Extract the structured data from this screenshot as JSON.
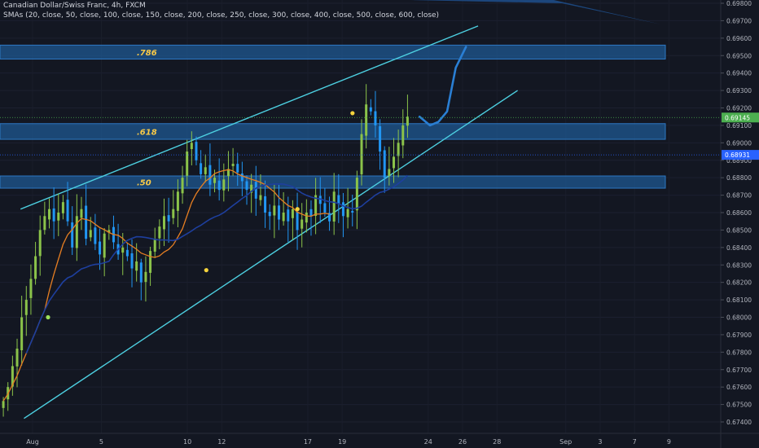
{
  "header": {
    "title": "Canadian Dollar/Swiss Franc, 4h, FXCM",
    "indicator": "SMAs (20, close, 50, close, 100, close, 150, close, 200, close, 250, close, 300, close, 400, close, 500, close, 600, close)"
  },
  "colors": {
    "background": "#131722",
    "bull": "#8bc34a",
    "bear": "#2196f3",
    "channel": "#4dd0e1",
    "fib_zone": "#1e5a96",
    "fib_label": "#f7c948",
    "sma_fast": "#e67e22",
    "sma_slow": "#1e3f9e",
    "projection": "#2a7fd4",
    "marker": "#f5d33c",
    "marker_green": "#9be05a",
    "price_badge_green": "#4caf50",
    "price_badge_blue": "#2962ff"
  },
  "chart_data": {
    "type": "candlestick",
    "symbol": "CADCHF",
    "timeframe": "4h",
    "source": "FXCM",
    "y_axis": {
      "range": [
        0.6738,
        0.6982
      ],
      "ticks": [
        "0.69800",
        "0.69700",
        "0.69600",
        "0.69500",
        "0.69400",
        "0.69300",
        "0.69200",
        "0.69100",
        "0.69000",
        "0.68900",
        "0.68800",
        "0.68700",
        "0.68600",
        "0.68500",
        "0.68400",
        "0.68300",
        "0.68200",
        "0.68100",
        "0.68000",
        "0.67900",
        "0.67800",
        "0.67700",
        "0.67600",
        "0.67500",
        "0.67400"
      ]
    },
    "x_axis": {
      "ticks": [
        {
          "label": "Aug",
          "day": 1
        },
        {
          "label": "5",
          "day": 5
        },
        {
          "label": "10",
          "day": 10
        },
        {
          "label": "12",
          "day": 12
        },
        {
          "label": "17",
          "day": 17
        },
        {
          "label": "19",
          "day": 19
        },
        {
          "label": "24",
          "day": 24
        },
        {
          "label": "26",
          "day": 26
        },
        {
          "label": "28",
          "day": 28
        },
        {
          "label": "Sep",
          "day": 32
        },
        {
          "label": "3",
          "day": 34
        },
        {
          "label": "7",
          "day": 36
        },
        {
          "label": "9",
          "day": 38
        }
      ]
    },
    "last_price": "0.69145",
    "sma_price": "0.68931",
    "fib_zones": [
      {
        "label": ".786",
        "low": 0.6948,
        "high": 0.6956
      },
      {
        "label": ".618",
        "low": 0.6902,
        "high": 0.6911
      },
      {
        "label": ".50",
        "low": 0.6874,
        "high": 0.6881
      }
    ],
    "channel_lines": [
      {
        "name": "upper",
        "from": {
          "day": 0.3,
          "price": 0.6862
        },
        "to": {
          "day": 26.9,
          "price": 0.6967
        }
      },
      {
        "name": "lower",
        "from": {
          "day": 0.5,
          "price": 0.6742
        },
        "to": {
          "day": 29.2,
          "price": 0.693
        }
      }
    ],
    "closes": [
      0.6752,
      0.676,
      0.6772,
      0.6782,
      0.68,
      0.681,
      0.6822,
      0.6835,
      0.685,
      0.6858,
      0.6862,
      0.6855,
      0.686,
      0.6866,
      0.6855,
      0.684,
      0.6858,
      0.6862,
      0.6845,
      0.685,
      0.6842,
      0.6836,
      0.6848,
      0.685,
      0.6843,
      0.6836,
      0.684,
      0.6835,
      0.6828,
      0.6832,
      0.682,
      0.6826,
      0.6838,
      0.6845,
      0.6852,
      0.6858,
      0.6855,
      0.6862,
      0.6872,
      0.688,
      0.6895,
      0.69,
      0.689,
      0.6882,
      0.6886,
      0.6876,
      0.688,
      0.6873,
      0.6879,
      0.6885,
      0.6888,
      0.6883,
      0.6878,
      0.6873,
      0.6876,
      0.6868,
      0.687,
      0.686,
      0.6858,
      0.6864,
      0.6856,
      0.686,
      0.6855,
      0.6862,
      0.685,
      0.6856,
      0.686,
      0.6858,
      0.687,
      0.6865,
      0.686,
      0.6855,
      0.6872,
      0.6865,
      0.6858,
      0.6862,
      0.686,
      0.688,
      0.6905,
      0.6922,
      0.6918,
      0.691,
      0.6895,
      0.688,
      0.6885,
      0.6892,
      0.69,
      0.691,
      0.6915
    ],
    "markers": [
      {
        "day": 1.9,
        "price": 0.68,
        "color": "green"
      },
      {
        "day": 11.1,
        "price": 0.6827,
        "color": "yellow"
      },
      {
        "day": 16.4,
        "price": 0.6862,
        "color": "yellow"
      },
      {
        "day": 19.6,
        "price": 0.6917,
        "color": "yellow"
      }
    ],
    "projection": [
      {
        "day": 23.5,
        "price": 0.6915
      },
      {
        "day": 24.1,
        "price": 0.691
      },
      {
        "day": 24.6,
        "price": 0.6912
      },
      {
        "day": 25.1,
        "price": 0.6918
      },
      {
        "day": 25.6,
        "price": 0.6943
      },
      {
        "day": 26.2,
        "price": 0.6955
      }
    ]
  }
}
